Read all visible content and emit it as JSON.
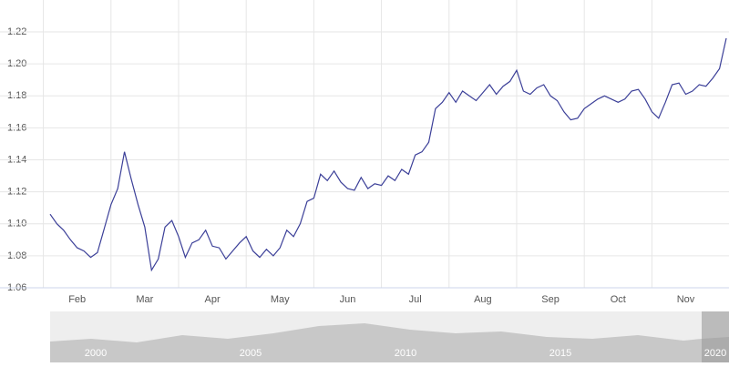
{
  "chart_data": {
    "type": "line",
    "categories": [
      null,
      null,
      null,
      null,
      "Feb",
      null,
      null,
      null,
      null,
      null,
      null,
      null,
      null,
      null,
      "Mar",
      null,
      null,
      null,
      null,
      null,
      null,
      null,
      null,
      null,
      "Apr",
      null,
      null,
      null,
      null,
      null,
      null,
      null,
      null,
      null,
      "May",
      null,
      null,
      null,
      null,
      null,
      null,
      null,
      null,
      null,
      "Jun",
      null,
      null,
      null,
      null,
      null,
      null,
      null,
      null,
      null,
      "Jul",
      null,
      null,
      null,
      null,
      null,
      null,
      null,
      null,
      null,
      "Aug",
      null,
      null,
      null,
      null,
      null,
      null,
      null,
      null,
      null,
      "Sep",
      null,
      null,
      null,
      null,
      null,
      null,
      null,
      null,
      null,
      "Oct",
      null,
      null,
      null,
      null,
      null,
      null,
      null,
      null,
      null,
      "Nov",
      null,
      null,
      null,
      null,
      null,
      null
    ],
    "series": [
      {
        "color": "#3b3f98",
        "values": [
          1.106,
          1.1,
          1.096,
          1.09,
          1.085,
          1.083,
          1.079,
          1.082,
          1.097,
          1.112,
          1.122,
          1.145,
          1.128,
          1.112,
          1.098,
          1.071,
          1.078,
          1.098,
          1.102,
          1.092,
          1.079,
          1.088,
          1.09,
          1.096,
          1.086,
          1.085,
          1.078,
          1.083,
          1.088,
          1.092,
          1.083,
          1.079,
          1.084,
          1.08,
          1.085,
          1.096,
          1.092,
          1.1,
          1.114,
          1.116,
          1.131,
          1.127,
          1.133,
          1.126,
          1.122,
          1.121,
          1.129,
          1.122,
          1.125,
          1.124,
          1.13,
          1.127,
          1.134,
          1.131,
          1.143,
          1.145,
          1.151,
          1.172,
          1.176,
          1.182,
          1.176,
          1.183,
          1.18,
          1.177,
          1.182,
          1.187,
          1.181,
          1.186,
          1.189,
          1.196,
          1.183,
          1.181,
          1.185,
          1.187,
          1.18,
          1.177,
          1.17,
          1.165,
          1.166,
          1.172,
          1.175,
          1.178,
          1.18,
          1.178,
          1.176,
          1.178,
          1.183,
          1.184,
          1.178,
          1.17,
          1.166,
          1.176,
          1.187,
          1.188,
          1.181,
          1.183,
          1.187,
          1.186,
          1.191,
          1.197,
          1.216
        ]
      }
    ],
    "ylim": [
      1.06,
      1.22
    ],
    "yticks": [
      1.06,
      1.08,
      {
        "value": 1.1,
        "label": "1.10"
      },
      1.12,
      1.14,
      1.16,
      1.18,
      {
        "value": 1.2,
        "label": "1.20"
      },
      1.22
    ],
    "grid": true
  },
  "navigator": {
    "labels": [
      "2000",
      "2005",
      "2010",
      "2015",
      "2020"
    ]
  }
}
